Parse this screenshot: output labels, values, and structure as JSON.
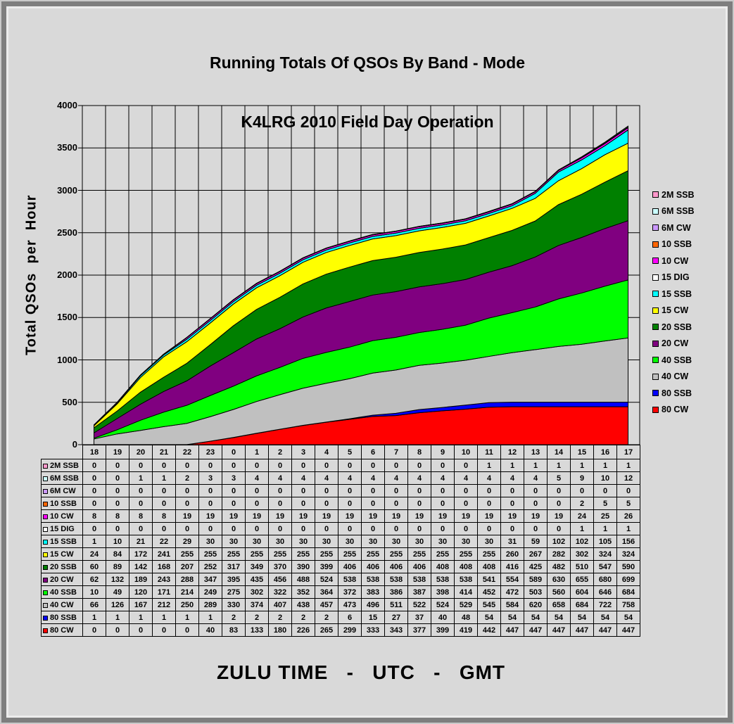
{
  "title": {
    "line1": "Running Totals Of QSOs By Band - Mode",
    "line2": "K4LRG 2010 Field Day Operation"
  },
  "y_axis": {
    "title": "Total QSOs  per  Hour"
  },
  "x_axis": {
    "title": "ZULU TIME   -   UTC   -   GMT"
  },
  "chart_data": {
    "type": "area",
    "stacked": true,
    "grid": true,
    "legend_position": "right",
    "ylim": [
      0,
      4000
    ],
    "y_ticks": [
      0,
      500,
      1000,
      1500,
      2000,
      2500,
      3000,
      3500,
      4000
    ],
    "x": [
      "18",
      "19",
      "20",
      "21",
      "22",
      "23",
      "0",
      "1",
      "2",
      "3",
      "4",
      "5",
      "6",
      "7",
      "8",
      "9",
      "10",
      "11",
      "12",
      "13",
      "14",
      "15",
      "16",
      "17"
    ],
    "series": [
      {
        "name": "2M SSB",
        "color": "#ff99cc",
        "values": [
          0,
          0,
          0,
          0,
          0,
          0,
          0,
          0,
          0,
          0,
          0,
          0,
          0,
          0,
          0,
          0,
          0,
          1,
          1,
          1,
          1,
          1,
          1,
          1
        ]
      },
      {
        "name": "6M SSB",
        "color": "#ccffff",
        "values": [
          0,
          0,
          1,
          1,
          2,
          3,
          3,
          4,
          4,
          4,
          4,
          4,
          4,
          4,
          4,
          4,
          4,
          4,
          4,
          4,
          5,
          9,
          10,
          12
        ]
      },
      {
        "name": "6M CW",
        "color": "#cc99ff",
        "values": [
          0,
          0,
          0,
          0,
          0,
          0,
          0,
          0,
          0,
          0,
          0,
          0,
          0,
          0,
          0,
          0,
          0,
          0,
          0,
          0,
          0,
          0,
          0,
          0
        ]
      },
      {
        "name": "10 SSB",
        "color": "#ff6600",
        "values": [
          0,
          0,
          0,
          0,
          0,
          0,
          0,
          0,
          0,
          0,
          0,
          0,
          0,
          0,
          0,
          0,
          0,
          0,
          0,
          0,
          0,
          2,
          5,
          5
        ]
      },
      {
        "name": "10 CW",
        "color": "#ff00ff",
        "values": [
          8,
          8,
          8,
          8,
          19,
          19,
          19,
          19,
          19,
          19,
          19,
          19,
          19,
          19,
          19,
          19,
          19,
          19,
          19,
          19,
          19,
          24,
          25,
          26
        ]
      },
      {
        "name": "15 DIG",
        "color": "#ffffff",
        "values": [
          0,
          0,
          0,
          0,
          0,
          0,
          0,
          0,
          0,
          0,
          0,
          0,
          0,
          0,
          0,
          0,
          0,
          0,
          0,
          0,
          0,
          1,
          1,
          1
        ]
      },
      {
        "name": "15 SSB",
        "color": "#00ffff",
        "values": [
          1,
          10,
          21,
          22,
          29,
          30,
          30,
          30,
          30,
          30,
          30,
          30,
          30,
          30,
          30,
          30,
          30,
          30,
          31,
          59,
          102,
          102,
          105,
          156
        ]
      },
      {
        "name": "15 CW",
        "color": "#ffff00",
        "values": [
          24,
          84,
          172,
          241,
          255,
          255,
          255,
          255,
          255,
          255,
          255,
          255,
          255,
          255,
          255,
          255,
          255,
          255,
          260,
          267,
          282,
          302,
          324,
          324
        ]
      },
      {
        "name": "20 SSB",
        "color": "#008000",
        "values": [
          60,
          89,
          142,
          168,
          207,
          252,
          317,
          349,
          370,
          390,
          399,
          406,
          406,
          406,
          406,
          408,
          408,
          408,
          416,
          425,
          482,
          510,
          547,
          590
        ]
      },
      {
        "name": "20 CW",
        "color": "#800080",
        "values": [
          62,
          132,
          189,
          243,
          288,
          347,
          395,
          435,
          456,
          488,
          524,
          538,
          538,
          538,
          538,
          538,
          538,
          541,
          554,
          589,
          630,
          655,
          680,
          699
        ]
      },
      {
        "name": "40 SSB",
        "color": "#00ff00",
        "values": [
          10,
          49,
          120,
          171,
          214,
          249,
          275,
          302,
          322,
          352,
          364,
          372,
          383,
          386,
          387,
          398,
          414,
          452,
          472,
          503,
          560,
          604,
          646,
          684
        ]
      },
      {
        "name": "40 CW",
        "color": "#c0c0c0",
        "values": [
          66,
          126,
          167,
          212,
          250,
          289,
          330,
          374,
          407,
          438,
          457,
          473,
          496,
          511,
          522,
          524,
          529,
          545,
          584,
          620,
          658,
          684,
          722,
          758
        ]
      },
      {
        "name": "80 SSB",
        "color": "#0000ff",
        "values": [
          1,
          1,
          1,
          1,
          1,
          1,
          2,
          2,
          2,
          2,
          2,
          6,
          15,
          27,
          37,
          40,
          48,
          54,
          54,
          54,
          54,
          54,
          54,
          54
        ]
      },
      {
        "name": "80 CW",
        "color": "#ff0000",
        "values": [
          0,
          0,
          0,
          0,
          0,
          40,
          83,
          133,
          180,
          226,
          265,
          299,
          333,
          343,
          377,
          399,
          419,
          442,
          447,
          447,
          447,
          447,
          447,
          447
        ]
      }
    ],
    "stack_order_bottom_to_top": [
      "80 CW",
      "80 SSB",
      "40 CW",
      "40 SSB",
      "20 CW",
      "20 SSB",
      "15 CW",
      "15 SSB",
      "15 DIG",
      "10 CW",
      "10 SSB",
      "6M CW",
      "6M SSB",
      "2M SSB"
    ]
  }
}
